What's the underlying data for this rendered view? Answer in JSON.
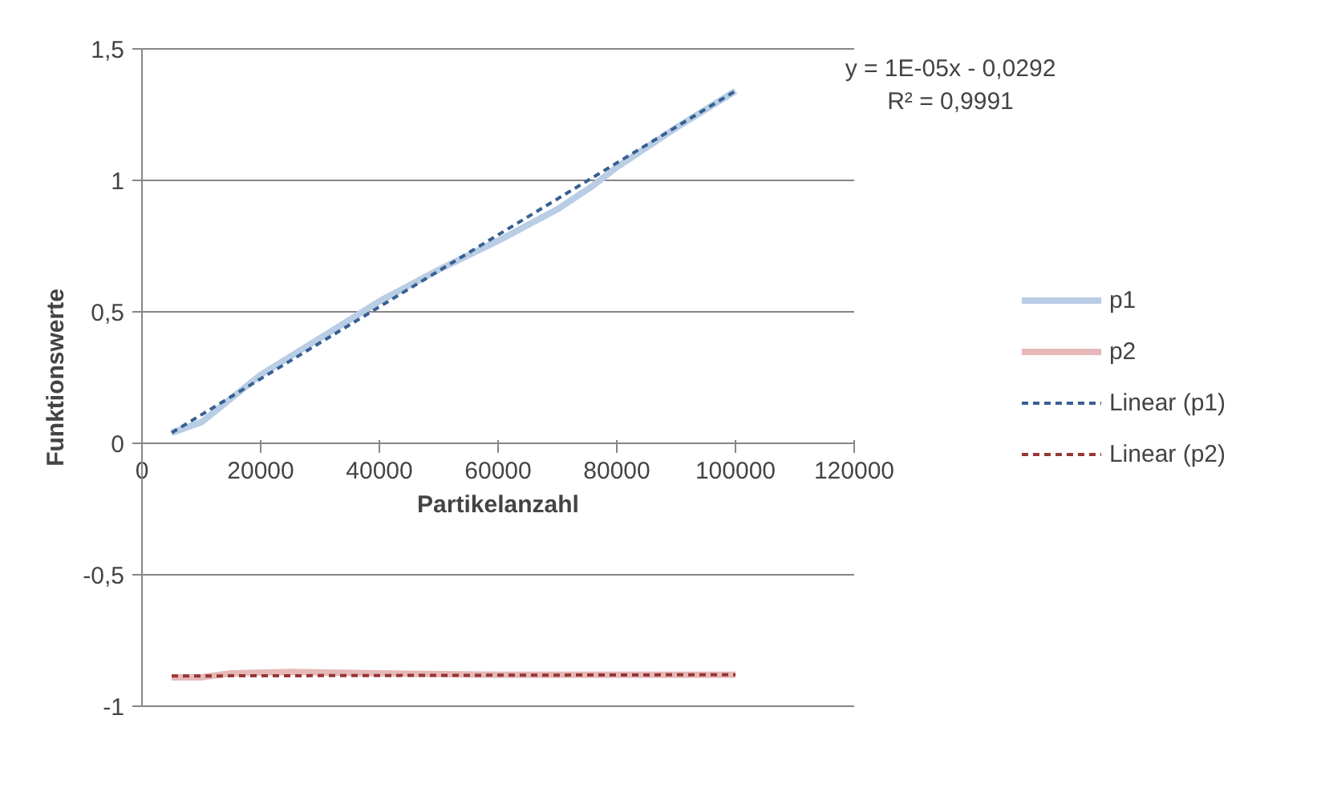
{
  "chart_data": {
    "type": "line",
    "xlabel": "Partikelanzahl",
    "ylabel": "Funktionswerte",
    "xlim": [
      0,
      120000
    ],
    "ylim": [
      -1,
      1.5
    ],
    "xticks": [
      0,
      20000,
      40000,
      60000,
      80000,
      100000,
      120000
    ],
    "yticks": [
      {
        "value": -1,
        "label": "-1"
      },
      {
        "value": -0.5,
        "label": "-0,5"
      },
      {
        "value": 0,
        "label": "0"
      },
      {
        "value": 0.5,
        "label": "0,5"
      },
      {
        "value": 1,
        "label": "1"
      },
      {
        "value": 1.5,
        "label": "1,5"
      }
    ],
    "grid": "y",
    "legend": "right",
    "marker": "none",
    "annotations": [
      "y = 1E-05x - 0,0292\nR² = 0,9991"
    ],
    "series": [
      {
        "name": "p1",
        "color": "#b9cde5",
        "line_style": "solid",
        "x": [
          5000,
          10000,
          15000,
          20000,
          30000,
          40000,
          50000,
          60000,
          70000,
          76000,
          80000,
          90000,
          100000
        ],
        "values": [
          0.04,
          0.08,
          0.17,
          0.26,
          0.4,
          0.54,
          0.66,
          0.77,
          0.89,
          0.98,
          1.05,
          1.2,
          1.34
        ]
      },
      {
        "name": "p2",
        "color": "#e6b9b8",
        "line_style": "solid",
        "x": [
          5000,
          10000,
          15000,
          25000,
          40000,
          60000,
          80000,
          100000
        ],
        "values": [
          -0.89,
          -0.89,
          -0.875,
          -0.87,
          -0.875,
          -0.88,
          -0.88,
          -0.88
        ]
      },
      {
        "name": "Linear (p1)",
        "color": "#376092",
        "line_style": "dashed",
        "x": [
          5000,
          100000
        ],
        "values": [
          0.04,
          1.34
        ]
      },
      {
        "name": "Linear (p2)",
        "color": "#953735",
        "line_style": "dashed",
        "x": [
          5000,
          100000
        ],
        "values": [
          -0.885,
          -0.88
        ]
      }
    ]
  }
}
